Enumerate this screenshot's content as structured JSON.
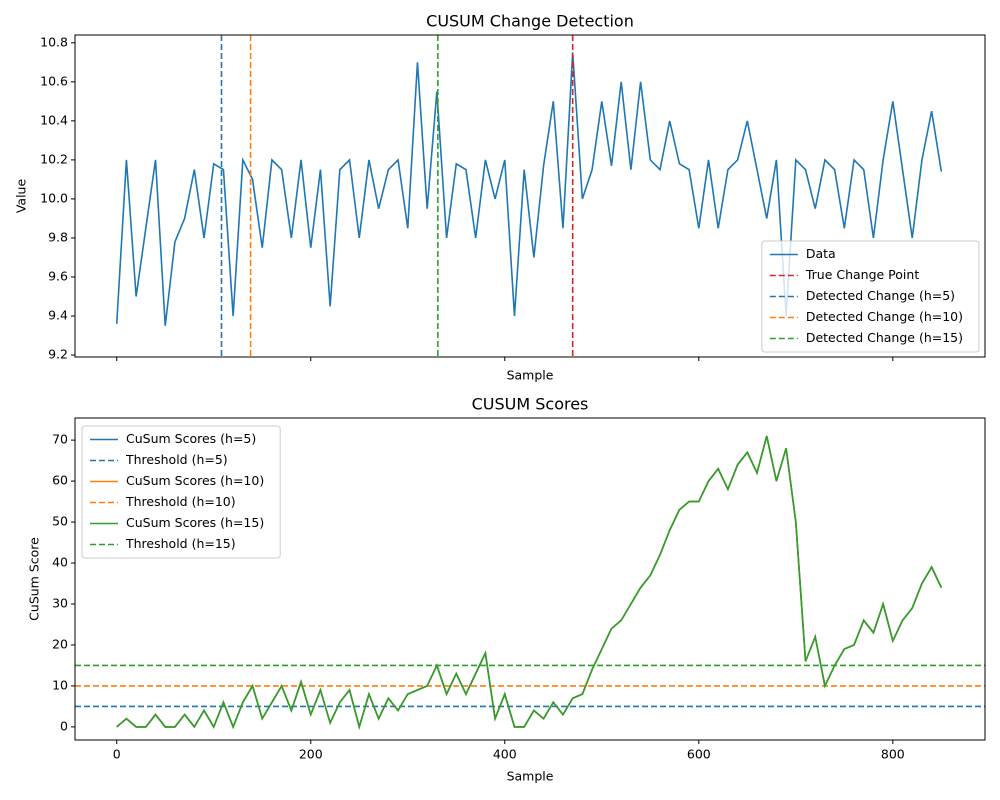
{
  "chart_data": [
    {
      "type": "line",
      "title": "CUSUM Change Detection",
      "x_label": "Sample",
      "y_label": "Value",
      "xlim": [
        -43,
        895
      ],
      "ylim": [
        9.19,
        10.84
      ],
      "xticks": [
        0,
        200,
        400,
        600,
        800
      ],
      "show_xtick_labels": false,
      "yticks": [
        9.2,
        9.4,
        9.6,
        9.8,
        {
          "value": 10,
          "label": "10.0"
        },
        10.2,
        10.4,
        10.6,
        10.8
      ],
      "legend": "lower right",
      "x": [
        0,
        10,
        20,
        30,
        40,
        50,
        60,
        70,
        80,
        90,
        100,
        110,
        120,
        130,
        140,
        150,
        160,
        170,
        180,
        190,
        200,
        210,
        220,
        230,
        240,
        250,
        260,
        270,
        280,
        290,
        300,
        310,
        320,
        330,
        340,
        350,
        360,
        370,
        380,
        390,
        400,
        410,
        420,
        430,
        440,
        450,
        460,
        470,
        480,
        490,
        500,
        510,
        520,
        530,
        540,
        550,
        560,
        570,
        580,
        590,
        600,
        610,
        620,
        630,
        640,
        650,
        660,
        670,
        680,
        690,
        700,
        710,
        720,
        730,
        740,
        750,
        760,
        770,
        780,
        790,
        800,
        810,
        820,
        830,
        840,
        850
      ],
      "series": [
        {
          "name": "Data",
          "color": "#1f77b4",
          "linestyle": "solid",
          "values": [
            9.36,
            10.2,
            9.5,
            9.85,
            10.2,
            9.35,
            9.78,
            9.9,
            10.15,
            9.8,
            10.18,
            10.15,
            9.4,
            10.2,
            10.1,
            9.75,
            10.2,
            10.15,
            9.8,
            10.2,
            9.75,
            10.15,
            9.45,
            10.15,
            10.2,
            9.8,
            10.2,
            9.95,
            10.15,
            10.2,
            9.85,
            10.7,
            9.95,
            10.55,
            9.8,
            10.18,
            10.15,
            9.8,
            10.2,
            10.0,
            10.2,
            9.4,
            10.15,
            9.7,
            10.17,
            10.5,
            9.85,
            10.75,
            10.0,
            10.15,
            10.5,
            10.17,
            10.6,
            10.15,
            10.6,
            10.2,
            10.15,
            10.4,
            10.18,
            10.15,
            9.85,
            10.2,
            9.85,
            10.15,
            10.2,
            10.4,
            10.15,
            9.9,
            10.2,
            9.4,
            10.2,
            10.15,
            9.95,
            10.2,
            10.15,
            9.85,
            10.2,
            10.15,
            9.8,
            10.2,
            10.5,
            10.15,
            9.8,
            10.2,
            10.45,
            10.14
          ]
        },
        {
          "name": "True Change Point",
          "color": "#d62728",
          "linestyle": "dashed",
          "vline": 470
        },
        {
          "name": "Detected Change (h=5)",
          "color": "#1f77b4",
          "linestyle": "dashed",
          "vline": 108
        },
        {
          "name": "Detected Change (h=10)",
          "color": "#ff7f0e",
          "linestyle": "dashed",
          "vline": 138
        },
        {
          "name": "Detected Change (h=15)",
          "color": "#2ca02c",
          "linestyle": "dashed",
          "vline": 331
        }
      ]
    },
    {
      "type": "line",
      "title": "CUSUM Scores",
      "x_label": "Sample",
      "y_label": "CuSum Score",
      "xlim": [
        -43,
        895
      ],
      "ylim": [
        -3.2,
        75.4
      ],
      "xticks": [
        0,
        200,
        400,
        600,
        800
      ],
      "show_xtick_labels": true,
      "yticks": [
        0,
        10,
        20,
        30,
        40,
        50,
        60,
        70
      ],
      "legend": "upper left",
      "x": [
        0,
        10,
        20,
        30,
        40,
        50,
        60,
        70,
        80,
        90,
        100,
        110,
        120,
        130,
        140,
        150,
        160,
        170,
        180,
        190,
        200,
        210,
        220,
        230,
        240,
        250,
        260,
        270,
        280,
        290,
        300,
        310,
        320,
        330,
        340,
        350,
        360,
        370,
        380,
        390,
        400,
        410,
        420,
        430,
        440,
        450,
        460,
        470,
        480,
        490,
        500,
        510,
        520,
        530,
        540,
        550,
        560,
        570,
        580,
        590,
        600,
        610,
        620,
        630,
        640,
        650,
        660,
        670,
        680,
        690,
        700,
        710,
        720,
        730,
        740,
        750,
        760,
        770,
        780,
        790,
        800,
        810,
        820,
        830,
        840,
        850
      ],
      "series": [
        {
          "name": "CuSum Scores (h=5)",
          "color": "#1f77b4",
          "linestyle": "solid",
          "values": [
            0,
            2,
            0,
            0,
            3,
            0,
            0,
            3,
            0,
            4,
            0,
            6,
            0,
            6,
            10,
            2,
            6,
            10,
            4,
            11,
            3,
            9,
            1,
            6,
            9,
            0,
            8,
            2,
            7,
            4,
            8,
            9,
            10,
            15,
            8,
            13,
            8,
            13,
            18,
            2,
            8,
            0,
            0,
            4,
            2,
            6,
            3,
            7,
            8,
            14,
            19,
            24,
            26,
            30,
            34,
            37,
            42,
            48,
            53,
            55,
            55,
            60,
            63,
            58,
            64,
            67,
            62,
            71,
            60,
            68,
            50,
            16,
            22,
            10,
            15,
            19,
            20,
            26,
            23,
            30,
            21,
            26,
            29,
            35,
            39,
            34
          ]
        },
        {
          "name": "Threshold (h=5)",
          "color": "#1f77b4",
          "linestyle": "dashed",
          "hline": 5
        },
        {
          "name": "CuSum Scores (h=10)",
          "color": "#ff7f0e",
          "linestyle": "solid",
          "values": [
            0,
            2,
            0,
            0,
            3,
            0,
            0,
            3,
            0,
            4,
            0,
            6,
            0,
            6,
            10,
            2,
            6,
            10,
            4,
            11,
            3,
            9,
            1,
            6,
            9,
            0,
            8,
            2,
            7,
            4,
            8,
            9,
            10,
            15,
            8,
            13,
            8,
            13,
            18,
            2,
            8,
            0,
            0,
            4,
            2,
            6,
            3,
            7,
            8,
            14,
            19,
            24,
            26,
            30,
            34,
            37,
            42,
            48,
            53,
            55,
            55,
            60,
            63,
            58,
            64,
            67,
            62,
            71,
            60,
            68,
            50,
            16,
            22,
            10,
            15,
            19,
            20,
            26,
            23,
            30,
            21,
            26,
            29,
            35,
            39,
            34
          ]
        },
        {
          "name": "Threshold (h=10)",
          "color": "#ff7f0e",
          "linestyle": "dashed",
          "hline": 10
        },
        {
          "name": "CuSum Scores (h=15)",
          "color": "#2ca02c",
          "linestyle": "solid",
          "values": [
            0,
            2,
            0,
            0,
            3,
            0,
            0,
            3,
            0,
            4,
            0,
            6,
            0,
            6,
            10,
            2,
            6,
            10,
            4,
            11,
            3,
            9,
            1,
            6,
            9,
            0,
            8,
            2,
            7,
            4,
            8,
            9,
            10,
            15,
            8,
            13,
            8,
            13,
            18,
            2,
            8,
            0,
            0,
            4,
            2,
            6,
            3,
            7,
            8,
            14,
            19,
            24,
            26,
            30,
            34,
            37,
            42,
            48,
            53,
            55,
            55,
            60,
            63,
            58,
            64,
            67,
            62,
            71,
            60,
            68,
            50,
            16,
            22,
            10,
            15,
            19,
            20,
            26,
            23,
            30,
            21,
            26,
            29,
            35,
            39,
            34
          ]
        },
        {
          "name": "Threshold (h=15)",
          "color": "#2ca02c",
          "linestyle": "dashed",
          "hline": 15
        }
      ]
    }
  ]
}
